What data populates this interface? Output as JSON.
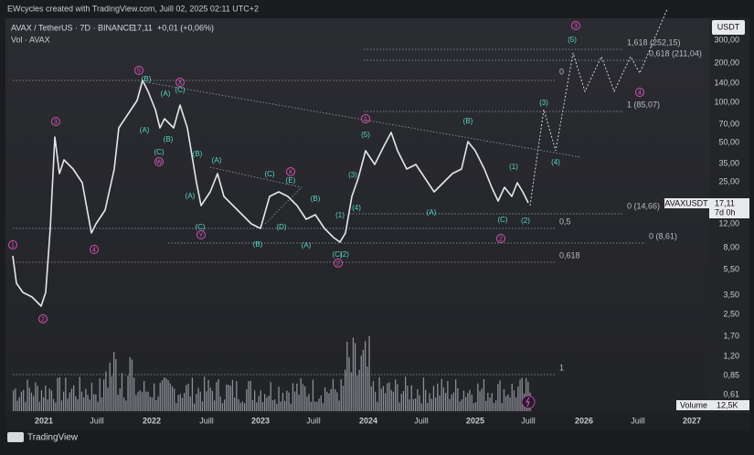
{
  "header": {
    "credit": "EWcycles created with TradingView.com, Juill 02, 2025 02:11 UTC+2",
    "symbol": "AVAX / TetherUS · 7D · BINANCE",
    "price": "17,11",
    "change": "+0,01 (+0,06%)",
    "volume_legend": "Vol · AVAX"
  },
  "price_axis": {
    "currency": "USDT",
    "labels": [
      "300,00",
      "200,00",
      "140,00",
      "100,00",
      "70,00",
      "50,00",
      "35,00",
      "25,00",
      "12,00",
      "8,00",
      "5,50",
      "3,50",
      "2,50",
      "1,70",
      "1,20",
      "0,85",
      "0,61"
    ],
    "tag": {
      "symbol": "AVAXUSDT",
      "price": "17,11",
      "countdown": "7d 0h"
    },
    "volume": {
      "name": "Volume",
      "value": "12,5K"
    }
  },
  "time_axis": [
    "2021",
    "Juill",
    "2022",
    "Juill",
    "2023",
    "Juill",
    "2024",
    "Juill",
    "2025",
    "Juill",
    "2026",
    "Juill",
    "2027"
  ],
  "fib_labels": [
    "1,618 (252,15)",
    "0,618 (211,04)",
    "0",
    "1 (85,07)",
    "0 (14,66)",
    "0,5",
    "0 (8,61)",
    "0,618",
    "1"
  ],
  "primary_waves": [
    "1",
    "2",
    "3",
    "4",
    "5",
    "X",
    "W",
    "Y",
    "X",
    "2",
    "1",
    "2",
    "3",
    "4"
  ],
  "minor_waves": [
    "(B)",
    "(A)",
    "(C)",
    "(A)",
    "(B)",
    "(C)",
    "(B)",
    "(A)",
    "(A)",
    "(C)",
    "(C)",
    "(E)",
    "(B)",
    "(D)",
    "(B)",
    "(A)",
    "(C)",
    "(1)",
    "(2)",
    "(3)",
    "(4)",
    "(5)",
    "(A)",
    "(B)",
    "(1)",
    "(C)",
    "(2)",
    "(3)",
    "(4)",
    "(5)"
  ],
  "footer": {
    "brand": "TradingView"
  }
}
